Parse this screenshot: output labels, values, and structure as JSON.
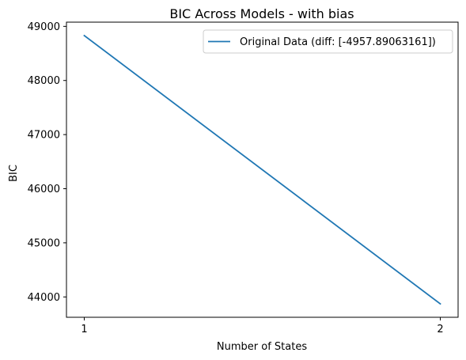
{
  "chart_data": {
    "type": "line",
    "title": "BIC Across Models - with bias",
    "xlabel": "Number of States",
    "ylabel": "BIC",
    "x": [
      1,
      2
    ],
    "series": [
      {
        "name": "Original Data (diff: [-4957.89063161])",
        "values": [
          48830,
          43872
        ],
        "color": "#1f77b4"
      }
    ],
    "xticks": [
      1,
      2
    ],
    "xtick_labels": [
      "1",
      "2"
    ],
    "yticks": [
      44000,
      45000,
      46000,
      47000,
      48000,
      49000
    ],
    "ytick_labels": [
      "44000",
      "45000",
      "46000",
      "47000",
      "48000",
      "49000"
    ],
    "xlim": [
      0.95,
      2.05
    ],
    "ylim": [
      43624,
      49078
    ],
    "grid": false,
    "legend_position": "top-right"
  }
}
